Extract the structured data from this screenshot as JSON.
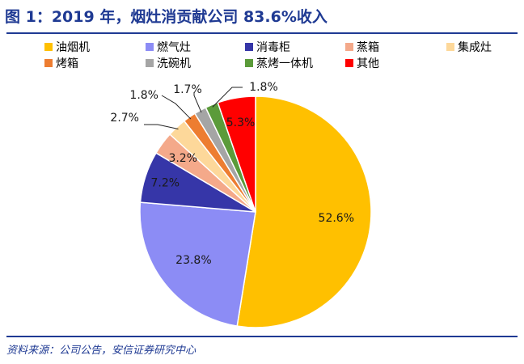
{
  "title": "图 1：2019 年，烟灶消贡献公司 83.6%收入",
  "source": "资料来源：公司公告，安信证券研究中心",
  "chart_data": {
    "type": "pie",
    "categories": [
      "油烟机",
      "燃气灶",
      "消毒柜",
      "蒸箱",
      "集成灶",
      "烤箱",
      "洗碗机",
      "蒸烤一体机",
      "其他"
    ],
    "values": [
      52.6,
      23.8,
      7.2,
      3.2,
      2.7,
      1.8,
      1.7,
      1.8,
      5.3
    ],
    "labels": [
      "52.6%",
      "23.8%",
      "7.2%",
      "3.2%",
      "2.7%",
      "1.8%",
      "1.7%",
      "1.8%",
      "5.3%"
    ],
    "colors": [
      "#ffc000",
      "#8c8cf5",
      "#3636a8",
      "#f4a98a",
      "#fdd89a",
      "#ed7d31",
      "#a5a5a5",
      "#5b9b3a",
      "#ff0000"
    ],
    "legend_position": "top",
    "start_angle": "12 o'clock, clockwise"
  }
}
